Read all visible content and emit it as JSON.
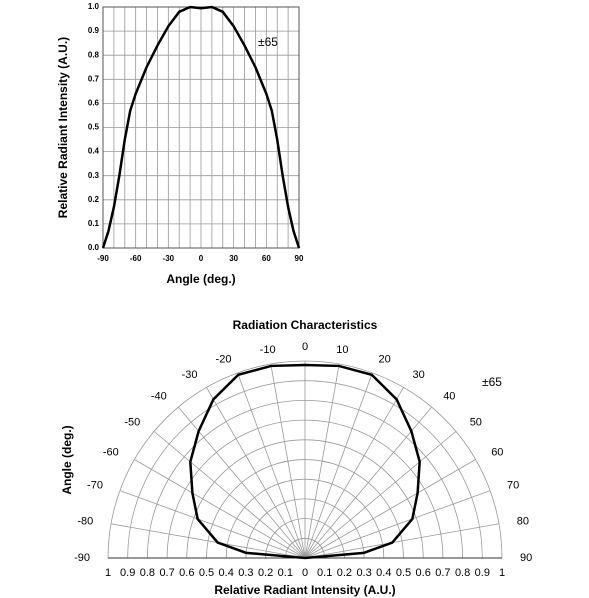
{
  "chart_data": [
    {
      "type": "line",
      "x": [
        -90,
        -85,
        -80,
        -75,
        -70,
        -65,
        -60,
        -50,
        -40,
        -30,
        -20,
        -10,
        0,
        10,
        20,
        30,
        40,
        50,
        60,
        65,
        70,
        75,
        80,
        85,
        90
      ],
      "values": [
        0,
        0.07,
        0.17,
        0.3,
        0.45,
        0.57,
        0.64,
        0.75,
        0.84,
        0.92,
        0.98,
        1.0,
        0.995,
        1.0,
        0.98,
        0.92,
        0.84,
        0.75,
        0.64,
        0.57,
        0.45,
        0.3,
        0.17,
        0.07,
        0
      ],
      "color": "#000000",
      "xlim": [
        -90,
        90
      ],
      "ylim": [
        0,
        1
      ],
      "xticks": [
        -90,
        -60,
        -30,
        0,
        30,
        60,
        90
      ],
      "yticks": [
        {
          "value": 0,
          "label": "0.0"
        },
        0.1,
        0.2,
        0.3,
        0.4,
        0.5,
        0.6,
        0.7,
        0.8,
        0.9,
        {
          "value": 1,
          "label": "1.0"
        }
      ],
      "xgrid": [
        -80,
        -70,
        -50,
        -40,
        -20,
        -10,
        10,
        20,
        40,
        50,
        70,
        80
      ],
      "grid": true,
      "xlabel": "Angle (deg.)",
      "ylabel": "Relative Radiant Intensity (A.U.)",
      "annotation": "±65"
    },
    {
      "type": "polar",
      "title": "Radiation Characteristics",
      "theta": [
        -90,
        -85,
        -80,
        -70,
        -60,
        -50,
        -40,
        -30,
        -20,
        -10,
        0,
        10,
        20,
        30,
        40,
        50,
        60,
        70,
        80,
        85,
        90
      ],
      "values": [
        0,
        0.3,
        0.45,
        0.58,
        0.66,
        0.76,
        0.84,
        0.93,
        0.99,
        0.99,
        0.98,
        0.99,
        0.99,
        0.93,
        0.84,
        0.76,
        0.66,
        0.58,
        0.45,
        0.3,
        0
      ],
      "color": "#000000",
      "rlim": [
        0,
        1
      ],
      "rticks": [
        0,
        0.1,
        0.2,
        0.3,
        0.4,
        0.5,
        0.6,
        0.7,
        0.8,
        0.9,
        1
      ],
      "thetaticks": [
        -90,
        -80,
        -70,
        -60,
        -50,
        -40,
        -30,
        -20,
        -10,
        0,
        10,
        20,
        30,
        40,
        50,
        60,
        70,
        80,
        90
      ],
      "grid": true,
      "thetalabel": "Angle (deg.)",
      "rlabel": "Relative Radiant Intensity (A.U.)",
      "annotation": "±65"
    }
  ]
}
